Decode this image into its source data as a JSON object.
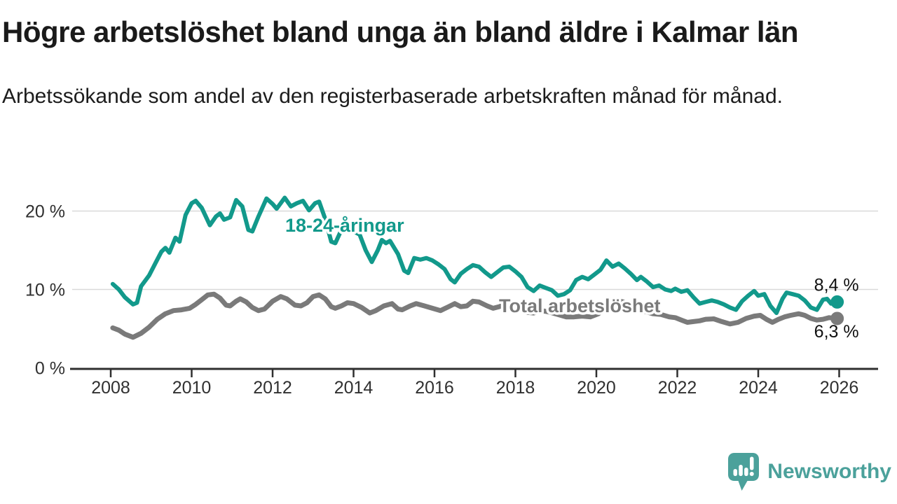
{
  "header": {
    "title": "Högre arbetslöshet bland unga än bland äldre i Kalmar län",
    "subtitle": "Arbetssökande som andel av den registerbaserade arbetskraften månad för månad."
  },
  "branding": {
    "logo_text": "Newsworthy",
    "logo_color": "#4BA19B"
  },
  "chart_data": {
    "type": "line",
    "title": "Högre arbetslöshet bland unga än bland äldre i Kalmar län",
    "subtitle": "Arbetssökande som andel av den registerbaserade arbetskraften månad för månad.",
    "xlabel": "",
    "ylabel": "",
    "x_axis": {
      "tick_years": [
        2008,
        2010,
        2012,
        2014,
        2016,
        2018,
        2020,
        2022,
        2024,
        2026
      ],
      "range": [
        2008,
        2026
      ]
    },
    "y_axis": {
      "ticks": [
        {
          "value": 0,
          "label": "0 %"
        },
        {
          "value": 10,
          "label": "10 %"
        },
        {
          "value": 20,
          "label": "20 %"
        }
      ],
      "gridlines": [
        10,
        20
      ],
      "range": [
        0,
        22.5
      ],
      "unit": "%"
    },
    "grid": "horizontal-only",
    "legend_position": "inline-labels",
    "axis_color": "#2f2f2f",
    "grid_color": "#d9d9d9",
    "tick_label_color": "#303030",
    "value_label_color": "#111111",
    "series": [
      {
        "id": "youth",
        "label": "18-24-åringar",
        "color": "#12998B",
        "end_value": 8.4,
        "end_label": "8,4 %",
        "points": [
          [
            2008.05,
            10.7
          ],
          [
            2008.2,
            10.0
          ],
          [
            2008.35,
            9.0
          ],
          [
            2008.55,
            8.1
          ],
          [
            2008.65,
            8.3
          ],
          [
            2008.75,
            10.4
          ],
          [
            2008.95,
            11.8
          ],
          [
            2009.1,
            13.3
          ],
          [
            2009.25,
            14.8
          ],
          [
            2009.35,
            15.3
          ],
          [
            2009.45,
            14.7
          ],
          [
            2009.6,
            16.6
          ],
          [
            2009.7,
            16.1
          ],
          [
            2009.85,
            19.5
          ],
          [
            2010.0,
            21.0
          ],
          [
            2010.1,
            21.3
          ],
          [
            2010.25,
            20.4
          ],
          [
            2010.45,
            18.2
          ],
          [
            2010.6,
            19.3
          ],
          [
            2010.7,
            19.7
          ],
          [
            2010.8,
            18.9
          ],
          [
            2010.95,
            19.2
          ],
          [
            2011.1,
            21.4
          ],
          [
            2011.25,
            20.6
          ],
          [
            2011.4,
            17.6
          ],
          [
            2011.5,
            17.4
          ],
          [
            2011.65,
            19.3
          ],
          [
            2011.85,
            21.6
          ],
          [
            2012.0,
            20.9
          ],
          [
            2012.1,
            20.3
          ],
          [
            2012.3,
            21.7
          ],
          [
            2012.45,
            20.6
          ],
          [
            2012.6,
            21.0
          ],
          [
            2012.75,
            21.3
          ],
          [
            2012.9,
            20.1
          ],
          [
            2013.05,
            21.0
          ],
          [
            2013.15,
            21.2
          ],
          [
            2013.3,
            19.0
          ],
          [
            2013.45,
            16.1
          ],
          [
            2013.55,
            15.9
          ],
          [
            2013.7,
            17.6
          ],
          [
            2013.85,
            18.0
          ],
          [
            2014.0,
            17.4
          ],
          [
            2014.15,
            17.0
          ],
          [
            2014.3,
            15.0
          ],
          [
            2014.45,
            13.5
          ],
          [
            2014.6,
            15.0
          ],
          [
            2014.7,
            16.3
          ],
          [
            2014.8,
            15.9
          ],
          [
            2014.9,
            16.2
          ],
          [
            2015.1,
            14.5
          ],
          [
            2015.25,
            12.4
          ],
          [
            2015.35,
            12.1
          ],
          [
            2015.5,
            14.0
          ],
          [
            2015.65,
            13.8
          ],
          [
            2015.8,
            14.0
          ],
          [
            2015.95,
            13.7
          ],
          [
            2016.1,
            13.2
          ],
          [
            2016.25,
            12.6
          ],
          [
            2016.4,
            11.3
          ],
          [
            2016.5,
            10.9
          ],
          [
            2016.65,
            12.0
          ],
          [
            2016.8,
            12.6
          ],
          [
            2016.95,
            13.1
          ],
          [
            2017.1,
            12.9
          ],
          [
            2017.25,
            12.2
          ],
          [
            2017.4,
            11.6
          ],
          [
            2017.55,
            12.2
          ],
          [
            2017.7,
            12.8
          ],
          [
            2017.85,
            12.9
          ],
          [
            2018.0,
            12.3
          ],
          [
            2018.15,
            11.6
          ],
          [
            2018.3,
            10.3
          ],
          [
            2018.45,
            9.8
          ],
          [
            2018.6,
            10.5
          ],
          [
            2018.75,
            10.2
          ],
          [
            2018.9,
            9.9
          ],
          [
            2019.05,
            9.2
          ],
          [
            2019.2,
            9.4
          ],
          [
            2019.35,
            9.9
          ],
          [
            2019.5,
            11.2
          ],
          [
            2019.65,
            11.6
          ],
          [
            2019.8,
            11.3
          ],
          [
            2019.95,
            11.9
          ],
          [
            2020.1,
            12.5
          ],
          [
            2020.25,
            13.7
          ],
          [
            2020.4,
            12.9
          ],
          [
            2020.55,
            13.3
          ],
          [
            2020.7,
            12.7
          ],
          [
            2020.85,
            12.0
          ],
          [
            2021.0,
            11.2
          ],
          [
            2021.1,
            11.6
          ],
          [
            2021.25,
            11.0
          ],
          [
            2021.4,
            10.3
          ],
          [
            2021.55,
            10.5
          ],
          [
            2021.7,
            10.0
          ],
          [
            2021.85,
            9.8
          ],
          [
            2021.95,
            10.1
          ],
          [
            2022.1,
            9.7
          ],
          [
            2022.25,
            9.9
          ],
          [
            2022.4,
            9.0
          ],
          [
            2022.55,
            8.2
          ],
          [
            2022.7,
            8.4
          ],
          [
            2022.85,
            8.6
          ],
          [
            2023.0,
            8.4
          ],
          [
            2023.15,
            8.1
          ],
          [
            2023.3,
            7.7
          ],
          [
            2023.45,
            7.4
          ],
          [
            2023.6,
            8.5
          ],
          [
            2023.75,
            9.2
          ],
          [
            2023.9,
            9.8
          ],
          [
            2024.0,
            9.2
          ],
          [
            2024.15,
            9.4
          ],
          [
            2024.3,
            7.9
          ],
          [
            2024.45,
            7.0
          ],
          [
            2024.6,
            8.8
          ],
          [
            2024.7,
            9.6
          ],
          [
            2024.85,
            9.4
          ],
          [
            2025.0,
            9.2
          ],
          [
            2025.15,
            8.6
          ],
          [
            2025.3,
            7.7
          ],
          [
            2025.45,
            7.4
          ],
          [
            2025.6,
            8.7
          ],
          [
            2025.7,
            8.8
          ],
          [
            2025.8,
            8.2
          ],
          [
            2025.95,
            8.4
          ]
        ]
      },
      {
        "id": "total",
        "label": "Total arbetslöshet",
        "color": "#7A7A7A",
        "end_value": 6.3,
        "end_label": "6,3 %",
        "points": [
          [
            2008.05,
            5.1
          ],
          [
            2008.2,
            4.8
          ],
          [
            2008.35,
            4.3
          ],
          [
            2008.55,
            3.9
          ],
          [
            2008.75,
            4.4
          ],
          [
            2008.95,
            5.2
          ],
          [
            2009.15,
            6.2
          ],
          [
            2009.35,
            6.9
          ],
          [
            2009.55,
            7.3
          ],
          [
            2009.75,
            7.4
          ],
          [
            2009.95,
            7.6
          ],
          [
            2010.1,
            8.1
          ],
          [
            2010.25,
            8.7
          ],
          [
            2010.4,
            9.3
          ],
          [
            2010.55,
            9.4
          ],
          [
            2010.7,
            8.9
          ],
          [
            2010.85,
            8.0
          ],
          [
            2010.95,
            7.9
          ],
          [
            2011.1,
            8.5
          ],
          [
            2011.2,
            8.8
          ],
          [
            2011.35,
            8.4
          ],
          [
            2011.5,
            7.7
          ],
          [
            2011.65,
            7.3
          ],
          [
            2011.8,
            7.5
          ],
          [
            2012.0,
            8.5
          ],
          [
            2012.2,
            9.1
          ],
          [
            2012.35,
            8.8
          ],
          [
            2012.55,
            8.0
          ],
          [
            2012.7,
            7.9
          ],
          [
            2012.85,
            8.3
          ],
          [
            2013.0,
            9.1
          ],
          [
            2013.15,
            9.3
          ],
          [
            2013.3,
            8.8
          ],
          [
            2013.45,
            7.8
          ],
          [
            2013.55,
            7.6
          ],
          [
            2013.7,
            7.9
          ],
          [
            2013.85,
            8.3
          ],
          [
            2014.0,
            8.2
          ],
          [
            2014.2,
            7.7
          ],
          [
            2014.4,
            7.0
          ],
          [
            2014.55,
            7.3
          ],
          [
            2014.75,
            7.9
          ],
          [
            2014.95,
            8.2
          ],
          [
            2015.1,
            7.5
          ],
          [
            2015.2,
            7.4
          ],
          [
            2015.4,
            7.9
          ],
          [
            2015.55,
            8.2
          ],
          [
            2015.75,
            7.9
          ],
          [
            2015.95,
            7.6
          ],
          [
            2016.15,
            7.3
          ],
          [
            2016.35,
            7.8
          ],
          [
            2016.5,
            8.2
          ],
          [
            2016.65,
            7.8
          ],
          [
            2016.8,
            7.9
          ],
          [
            2016.95,
            8.5
          ],
          [
            2017.1,
            8.4
          ],
          [
            2017.3,
            7.9
          ],
          [
            2017.45,
            7.6
          ],
          [
            2017.6,
            7.8
          ],
          [
            2017.75,
            8.1
          ],
          [
            2017.9,
            8.0
          ],
          [
            2018.05,
            7.6
          ],
          [
            2018.25,
            7.1
          ],
          [
            2018.45,
            7.0
          ],
          [
            2018.65,
            7.3
          ],
          [
            2018.85,
            7.1
          ],
          [
            2019.05,
            6.8
          ],
          [
            2019.25,
            6.5
          ],
          [
            2019.45,
            6.5
          ],
          [
            2019.65,
            6.6
          ],
          [
            2019.85,
            6.5
          ],
          [
            2020.05,
            6.9
          ],
          [
            2020.25,
            7.8
          ],
          [
            2020.45,
            8.6
          ],
          [
            2020.6,
            8.5
          ],
          [
            2020.8,
            8.2
          ],
          [
            2021.0,
            7.7
          ],
          [
            2021.2,
            7.2
          ],
          [
            2021.4,
            6.9
          ],
          [
            2021.6,
            6.8
          ],
          [
            2021.8,
            6.5
          ],
          [
            2021.95,
            6.4
          ],
          [
            2022.1,
            6.1
          ],
          [
            2022.25,
            5.8
          ],
          [
            2022.4,
            5.9
          ],
          [
            2022.55,
            6.0
          ],
          [
            2022.7,
            6.2
          ],
          [
            2022.9,
            6.25
          ],
          [
            2023.1,
            5.9
          ],
          [
            2023.3,
            5.6
          ],
          [
            2023.5,
            5.8
          ],
          [
            2023.7,
            6.3
          ],
          [
            2023.9,
            6.6
          ],
          [
            2024.05,
            6.7
          ],
          [
            2024.2,
            6.2
          ],
          [
            2024.35,
            5.8
          ],
          [
            2024.5,
            6.2
          ],
          [
            2024.65,
            6.5
          ],
          [
            2024.8,
            6.7
          ],
          [
            2025.0,
            6.9
          ],
          [
            2025.15,
            6.7
          ],
          [
            2025.3,
            6.3
          ],
          [
            2025.45,
            6.1
          ],
          [
            2025.6,
            6.2
          ],
          [
            2025.75,
            6.4
          ],
          [
            2025.95,
            6.3
          ]
        ]
      }
    ]
  }
}
